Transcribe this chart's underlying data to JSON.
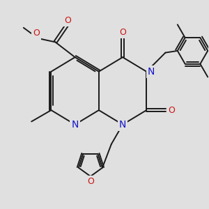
{
  "bg": "#e0e0e0",
  "bond_color": "#1a1a1a",
  "N_color": "#1414cc",
  "O_color": "#cc1414",
  "bond_lw": 1.4,
  "figsize": [
    3.0,
    3.0
  ],
  "dpi": 100,
  "xlim": [
    -0.5,
    5.0
  ],
  "ylim": [
    -2.5,
    3.0
  ]
}
